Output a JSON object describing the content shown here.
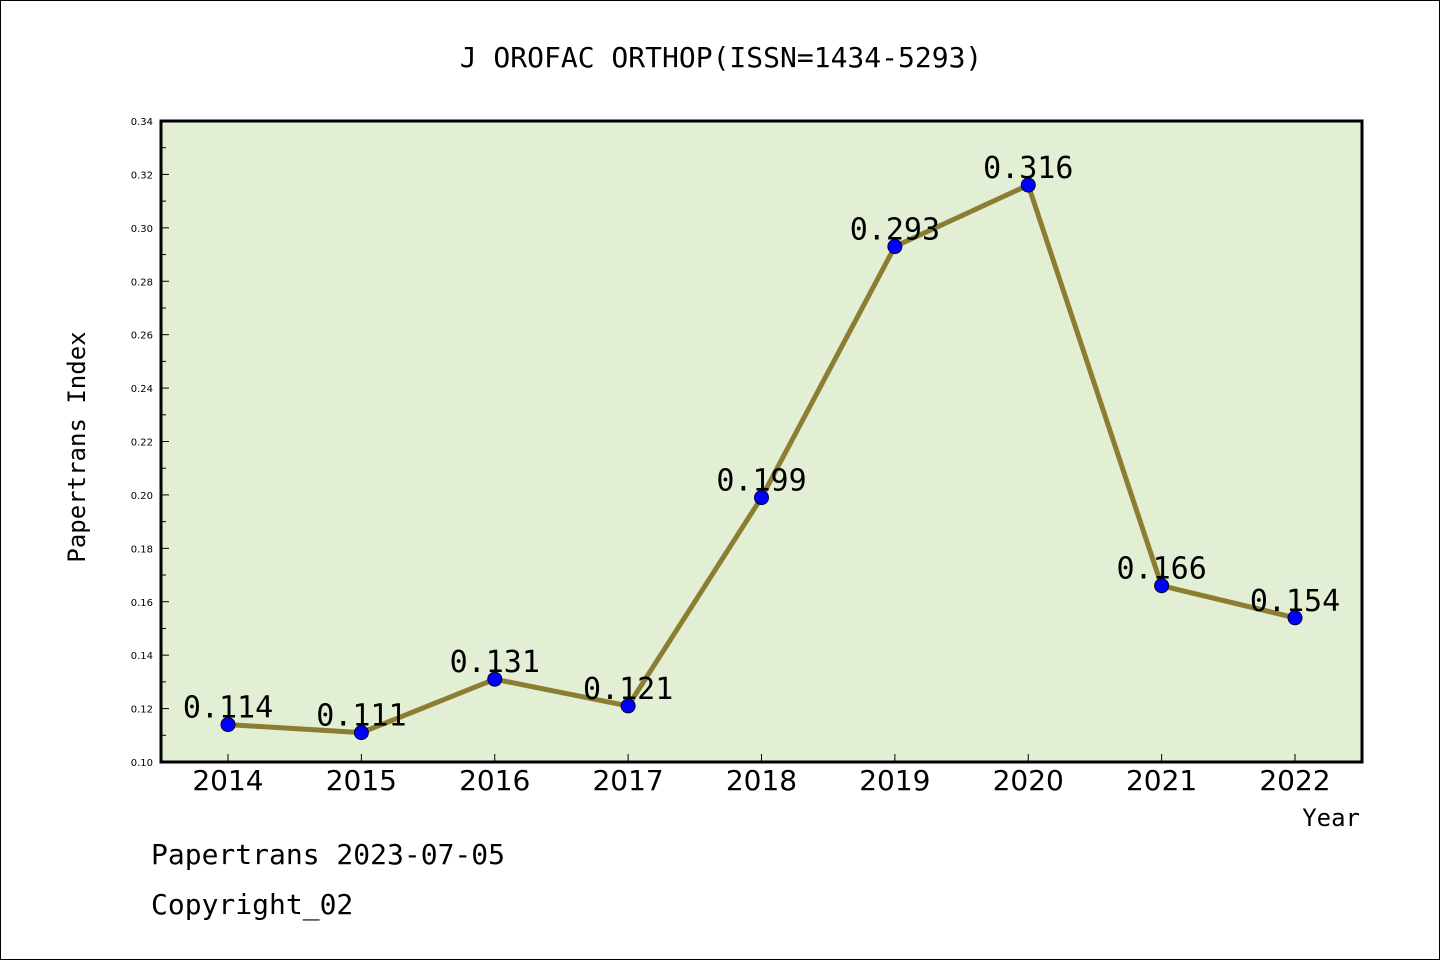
{
  "chart_data": {
    "type": "line",
    "title": "J OROFAC ORTHOP(ISSN=1434-5293)",
    "xlabel": "Year",
    "ylabel": "Papertrans Index",
    "categories": [
      "2014",
      "2015",
      "2016",
      "2017",
      "2018",
      "2019",
      "2020",
      "2021",
      "2022"
    ],
    "series": [
      {
        "values": [
          0.114,
          0.111,
          0.131,
          0.121,
          0.199,
          0.293,
          0.316,
          0.166,
          0.154
        ],
        "data_labels": [
          "0.114",
          "0.111",
          "0.131",
          "0.121",
          "0.199",
          "0.293",
          "0.316",
          "0.166",
          "0.154"
        ],
        "line_color": "#8b7d32",
        "marker_color": "#0000ff"
      }
    ],
    "ylim": [
      0.1,
      0.34
    ],
    "yticks": [
      "0.10",
      "0.12",
      "0.14",
      "0.16",
      "0.18",
      "0.20",
      "0.22",
      "0.24",
      "0.26",
      "0.28",
      "0.30",
      "0.32",
      "0.34"
    ],
    "plot_background": "#e2efd5",
    "grid": false,
    "legend": "none"
  },
  "footer": {
    "line1": "Papertrans 2023-07-05",
    "line2": "Copyright_02"
  }
}
